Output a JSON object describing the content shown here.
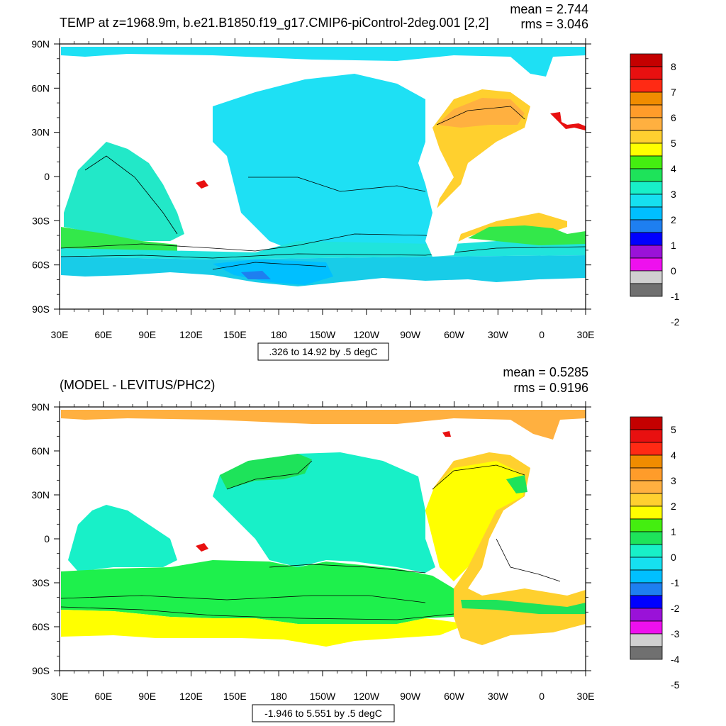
{
  "top_panel": {
    "title": "TEMP at z=1968.9m, b.e21.B1850.f19_g17.CMIP6-piControl-2deg.001 [2,2]",
    "mean_text": "mean = 2.744",
    "rms_text": "rms = 3.046",
    "contour_info": ".326 to 14.92 by .5 degC",
    "colorbar_labels": [
      "8",
      "7",
      "6",
      "5",
      "4",
      "3",
      "2",
      "1",
      "0",
      "-1",
      "-2"
    ],
    "colors": [
      "#c40000",
      "#e81010",
      "#ff2a14",
      "#f08c00",
      "#ff9c2a",
      "#ffb040",
      "#ffd030",
      "#ffff00",
      "#44ee10",
      "#1ee35a",
      "#18f0c8",
      "#16e0f0",
      "#00bfff",
      "#1e7ff0",
      "#0000ff",
      "#9a12d8",
      "#ee10ee",
      "#d0d0d0",
      "#707070"
    ]
  },
  "bottom_panel": {
    "title": "(MODEL - LEVITUS/PHC2)",
    "mean_text": "mean = 0.5285",
    "rms_text": "rms = 0.9196",
    "contour_info": "-1.946 to 5.551 by .5 degC",
    "colorbar_labels": [
      "5",
      "4",
      "3",
      "2",
      "1",
      "0",
      "-1",
      "-2",
      "-3",
      "-4",
      "-5"
    ],
    "colors": [
      "#c40000",
      "#e81010",
      "#ff2a14",
      "#f08c00",
      "#ff9c2a",
      "#ffb040",
      "#ffd030",
      "#ffff00",
      "#44ee10",
      "#1ee35a",
      "#18f0c8",
      "#16e0f0",
      "#00bfff",
      "#1e7ff0",
      "#0000ff",
      "#9a12d8",
      "#ee10ee",
      "#d0d0d0",
      "#707070"
    ]
  },
  "axes": {
    "x_labels": [
      "30E",
      "60E",
      "90E",
      "120E",
      "150E",
      "180",
      "150W",
      "120W",
      "90W",
      "60W",
      "30W",
      "0",
      "30E"
    ],
    "y_labels": [
      "90N",
      "60N",
      "30N",
      "0",
      "30S",
      "60S",
      "90S"
    ]
  },
  "ocean_colors": {
    "top": {
      "pacific": "#1ee0f4",
      "southern": "#18cce8",
      "south_band": "#20e4dc",
      "atlantic": "#ffd02e",
      "north_atl": "#ffb040",
      "indian": "#22e8c8",
      "arctic": "#1ee0f4",
      "deep": "#00bfff",
      "green_band": "#33e84a",
      "dark_blue": "#1e7ff0",
      "red": "#e81010"
    },
    "bottom": {
      "pacific": "#18f0c8",
      "southern": "#1ef04c",
      "yellow_band": "#ffff00",
      "atlantic": "#ffd02e",
      "north_atl": "#ffff00",
      "arctic": "#ffb040",
      "indian": "#18f0c8",
      "indian_s": "#1ee35a",
      "red": "#e81010"
    }
  }
}
